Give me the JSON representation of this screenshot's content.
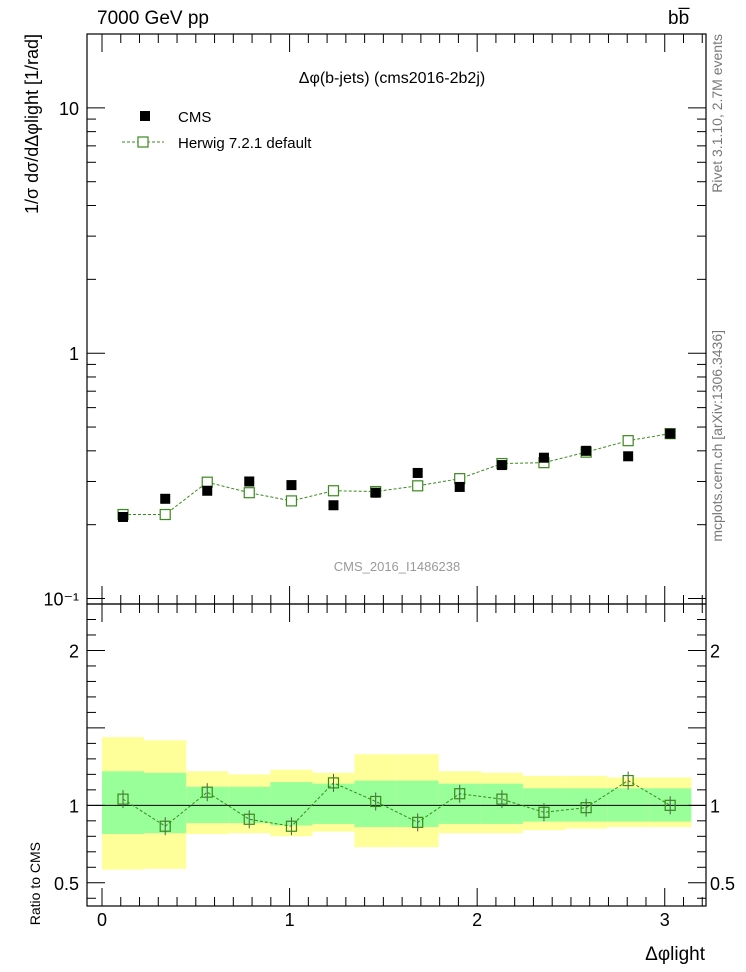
{
  "header": {
    "beam_label": "7000 GeV pp",
    "process_label": "bb̅"
  },
  "side_labels": {
    "rivet": "Rivet 3.1.10, 2.7M events",
    "mcplots": "mcplots.cern.ch [arXiv:1306.3436]"
  },
  "chart_data": [
    {
      "type": "scatter",
      "title": "Δφ(b-jets) (cms2016-2b2j)",
      "watermark": "CMS_2016_I1486238",
      "ylabel": "1/σ dσ/dΔφlight [1/rad]",
      "yscale": "log",
      "ylim": [
        0.095,
        20
      ],
      "xlim": [
        -0.08,
        3.22
      ],
      "ytick_labels": [
        "10⁻¹",
        "1",
        "10"
      ],
      "ytick_values": [
        0.1,
        1,
        10
      ],
      "legend": [
        "CMS",
        "Herwig 7.2.1 default"
      ],
      "x": [
        0.112,
        0.337,
        0.561,
        0.785,
        1.01,
        1.234,
        1.459,
        1.683,
        1.907,
        2.132,
        2.356,
        2.581,
        2.805,
        3.029
      ],
      "series": [
        {
          "name": "CMS",
          "marker": "filled-square",
          "color": "#000000",
          "values": [
            0.215,
            0.255,
            0.275,
            0.3,
            0.29,
            0.24,
            0.27,
            0.325,
            0.285,
            0.35,
            0.375,
            0.4,
            0.38,
            0.47
          ]
        },
        {
          "name": "Herwig 7.2.1 default",
          "marker": "open-square",
          "color": "#3a8a1e",
          "values": [
            0.22,
            0.22,
            0.298,
            0.27,
            0.25,
            0.275,
            0.273,
            0.288,
            0.308,
            0.355,
            0.358,
            0.395,
            0.44,
            0.47
          ]
        }
      ]
    },
    {
      "type": "scatter",
      "ylabel": "Ratio to CMS",
      "xlabel": "Δφlight",
      "ylim": [
        0.35,
        2.3
      ],
      "xlim": [
        -0.08,
        3.22
      ],
      "ytick_labels": [
        "0.5",
        "1",
        "2"
      ],
      "ytick_values": [
        0.5,
        1,
        2
      ],
      "xtick_labels": [
        "0",
        "1",
        "2",
        "3"
      ],
      "xtick_values": [
        0,
        1,
        2,
        3
      ],
      "bins": [
        [
          0,
          0.224
        ],
        [
          0.224,
          0.449
        ],
        [
          0.449,
          0.673
        ],
        [
          0.673,
          0.898
        ],
        [
          0.898,
          1.122
        ],
        [
          1.122,
          1.346
        ],
        [
          1.346,
          1.571
        ],
        [
          1.571,
          1.795
        ],
        [
          1.795,
          2.02
        ],
        [
          2.02,
          2.244
        ],
        [
          2.244,
          2.468
        ],
        [
          2.468,
          2.693
        ],
        [
          2.693,
          2.917
        ],
        [
          2.917,
          3.142
        ]
      ],
      "band_outer_low": [
        0.585,
        0.59,
        0.815,
        0.82,
        0.8,
        0.83,
        0.73,
        0.73,
        0.82,
        0.82,
        0.84,
        0.85,
        0.86,
        0.86
      ],
      "band_outer_high": [
        1.44,
        1.42,
        1.22,
        1.2,
        1.23,
        1.21,
        1.33,
        1.33,
        1.22,
        1.21,
        1.19,
        1.19,
        1.18,
        1.18
      ],
      "band_inner_low": [
        0.815,
        0.82,
        0.885,
        0.885,
        0.87,
        0.88,
        0.86,
        0.86,
        0.88,
        0.88,
        0.895,
        0.895,
        0.895,
        0.895
      ],
      "band_inner_high": [
        1.22,
        1.21,
        1.12,
        1.12,
        1.15,
        1.14,
        1.16,
        1.16,
        1.14,
        1.14,
        1.11,
        1.11,
        1.11,
        1.11
      ],
      "series": [
        {
          "name": "Herwig 7.2.1 default / CMS",
          "color": "#3a8a1e",
          "values": [
            1.04,
            0.865,
            1.085,
            0.91,
            0.865,
            1.145,
            1.025,
            0.89,
            1.075,
            1.04,
            0.955,
            0.985,
            1.16,
            1.0
          ]
        }
      ]
    }
  ]
}
